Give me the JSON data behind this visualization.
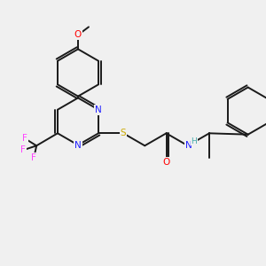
{
  "background_color": "#f0f0f0",
  "bond_color": "#1a1a1a",
  "atom_colors": {
    "N": "#2020ff",
    "O": "#ff0000",
    "S": "#ccaa00",
    "F": "#ff44ff",
    "H": "#44aaaa",
    "C": "#1a1a1a"
  },
  "figsize": [
    3.0,
    3.0
  ],
  "dpi": 100
}
